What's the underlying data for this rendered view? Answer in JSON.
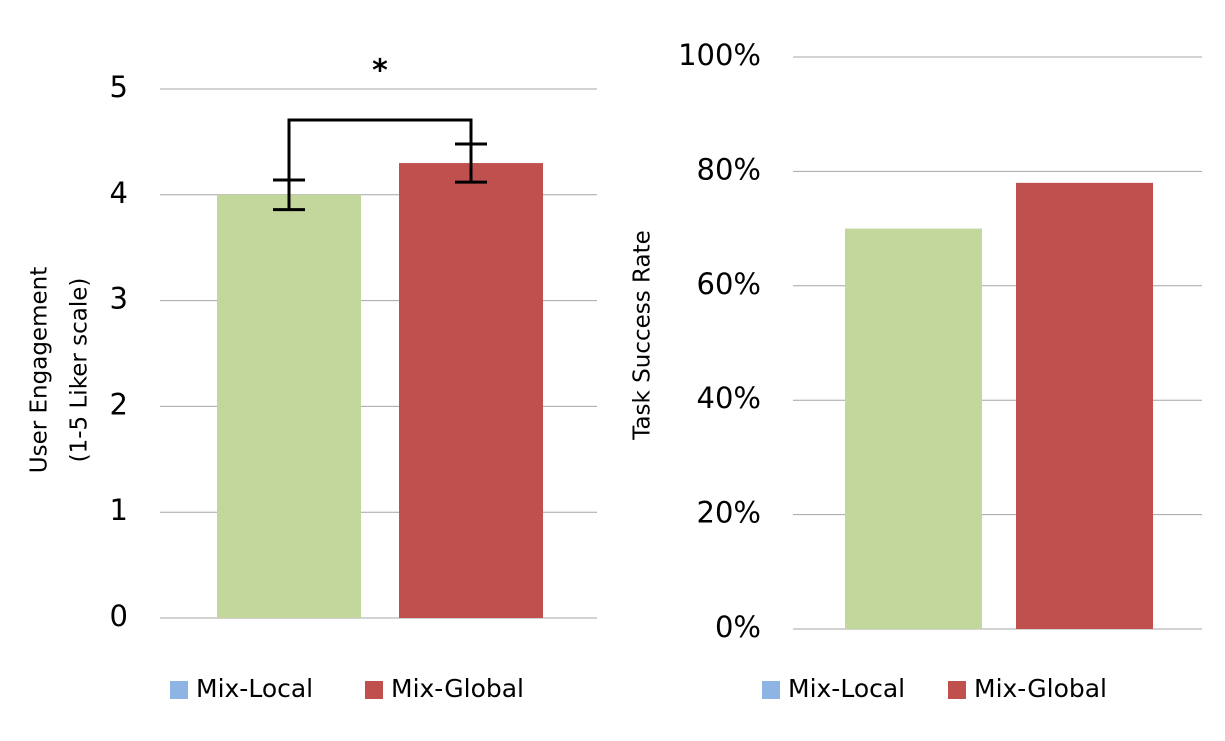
{
  "chart_data": [
    {
      "type": "bar",
      "ylabel": [
        "User Engagement",
        "(1-5 Liker scale)"
      ],
      "annotation": "*",
      "categories": [
        null
      ],
      "series": [
        {
          "name": "Mix-Local",
          "color": "#c3d69b",
          "legend_color": "#8db4e2",
          "values": [
            4.0
          ],
          "errors": [
            0.14
          ]
        },
        {
          "name": "Mix-Global",
          "color": "#c0504d",
          "legend_color": "#c0504d",
          "values": [
            4.3
          ],
          "errors": [
            0.18
          ]
        }
      ],
      "ylim": [
        0,
        5
      ],
      "yticks": [
        0,
        1,
        2,
        3,
        4,
        5
      ],
      "grid": true
    },
    {
      "type": "bar",
      "ylabel": [
        "Task Success Rate"
      ],
      "categories": [
        null
      ],
      "series": [
        {
          "name": "Mix-Local",
          "color": "#c3d69b",
          "legend_color": "#8db4e2",
          "values": [
            0.7
          ]
        },
        {
          "name": "Mix-Global",
          "color": "#c0504d",
          "legend_color": "#c0504d",
          "values": [
            0.78
          ]
        }
      ],
      "ylim": [
        0,
        1
      ],
      "yticks": [
        {
          "value": 0,
          "label": "0%"
        },
        {
          "value": 0.2,
          "label": "20%"
        },
        {
          "value": 0.4,
          "label": "40%"
        },
        {
          "value": 0.6,
          "label": "60%"
        },
        {
          "value": 0.8,
          "label": "80%"
        },
        {
          "value": 1,
          "label": "100%"
        }
      ],
      "grid": true
    }
  ]
}
